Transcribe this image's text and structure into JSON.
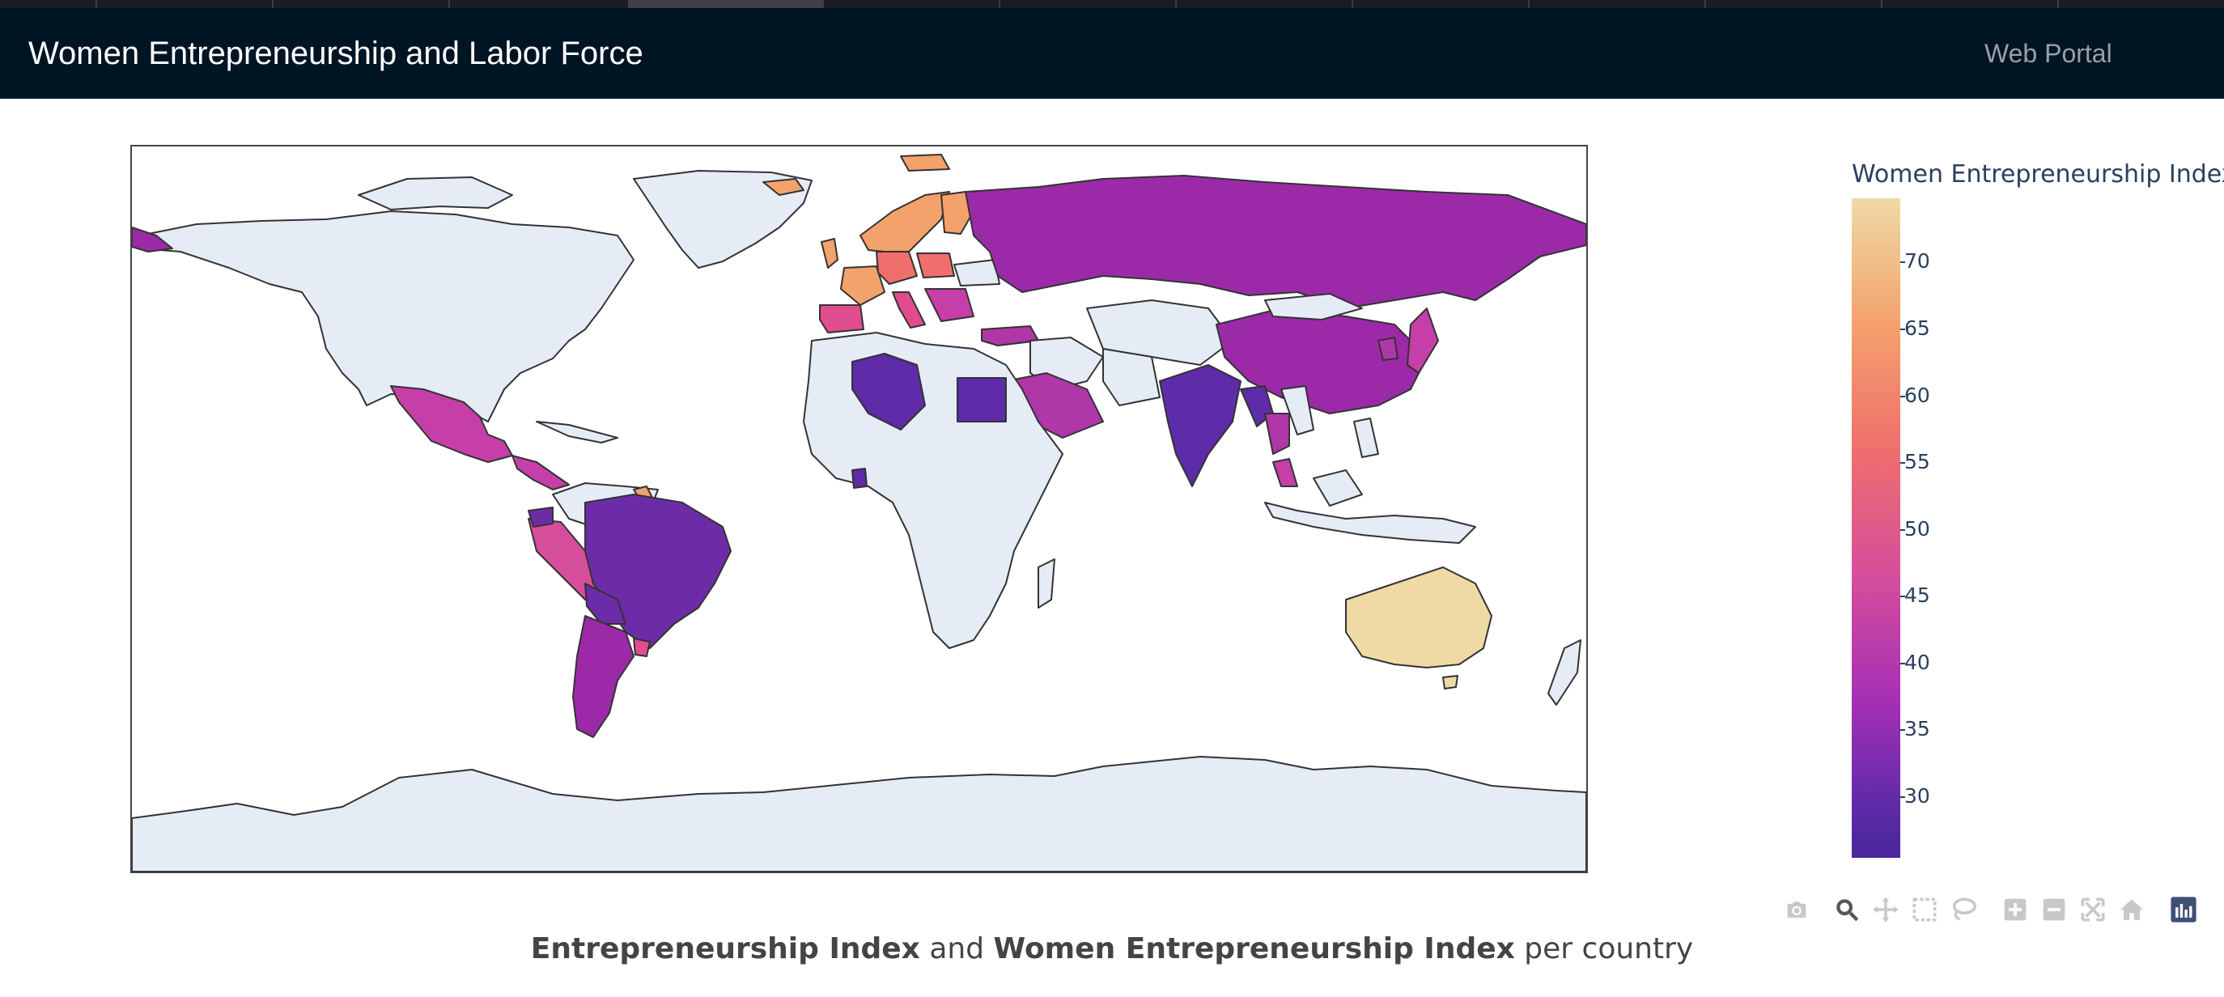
{
  "navbar": {
    "brand": "Women Entrepreneurship and Labor Force",
    "link": "Web Portal"
  },
  "chart_data": {
    "type": "choropleth",
    "projection": "equirectangular",
    "colorbar_title": "Women Entrepreneurship Index",
    "colorbar_ticks": [
      "70",
      "65",
      "60",
      "55",
      "50",
      "45",
      "40",
      "35",
      "30"
    ],
    "colorscale": "plasma-like (dark purple to sand)",
    "range": [
      25,
      75
    ],
    "no_data_color": "#e5ecf6",
    "countries_with_data": [
      {
        "name": "Australia",
        "value": 74
      },
      {
        "name": "United Kingdom",
        "value": 68
      },
      {
        "name": "Sweden",
        "value": 67
      },
      {
        "name": "Finland",
        "value": 67
      },
      {
        "name": "Norway",
        "value": 67
      },
      {
        "name": "Iceland",
        "value": 67
      },
      {
        "name": "France",
        "value": 65
      },
      {
        "name": "Germany",
        "value": 63
      },
      {
        "name": "Poland",
        "value": 58
      },
      {
        "name": "Spain",
        "value": 54
      },
      {
        "name": "Italy",
        "value": 50
      },
      {
        "name": "Mexico",
        "value": 43
      },
      {
        "name": "Peru",
        "value": 45
      },
      {
        "name": "Japan",
        "value": 43
      },
      {
        "name": "Turkey",
        "value": 40
      },
      {
        "name": "Saudi Arabia",
        "value": 40
      },
      {
        "name": "Thailand",
        "value": 40
      },
      {
        "name": "Malaysia",
        "value": 43
      },
      {
        "name": "China",
        "value": 40
      },
      {
        "name": "Russia",
        "value": 37
      },
      {
        "name": "Argentina",
        "value": 37
      },
      {
        "name": "Brazil",
        "value": 33
      },
      {
        "name": "Algeria",
        "value": 29
      },
      {
        "name": "Egypt",
        "value": 29
      },
      {
        "name": "India",
        "value": 28
      },
      {
        "name": "Ghana",
        "value": 28
      }
    ]
  },
  "modebar": {
    "buttons": [
      "camera-icon",
      "zoom-icon",
      "pan-icon",
      "box-select-icon",
      "lasso-icon",
      "zoom-in-icon",
      "zoom-out-icon",
      "autoscale-icon",
      "reset-icon",
      "plotly-logo-icon"
    ]
  },
  "caption": {
    "part1": "Entrepreneurship Index",
    "part2": " and ",
    "part3": "Women Entrepreneurship Index",
    "part4": " per country"
  }
}
